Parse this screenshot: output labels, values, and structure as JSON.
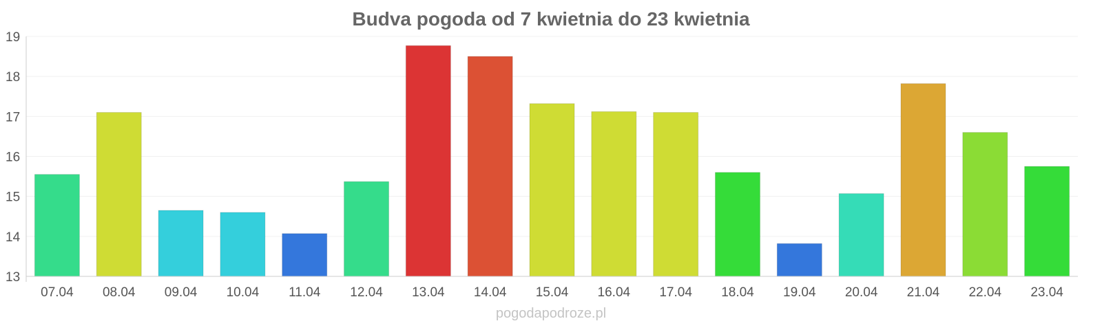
{
  "chart_data": {
    "type": "bar",
    "title": "Budva pogoda od 7 kwietnia do 23 kwietnia",
    "xlabel": "",
    "ylabel": "",
    "ylim": [
      13,
      19
    ],
    "yticks": [
      "13",
      "14",
      "15",
      "16",
      "17",
      "18",
      "19"
    ],
    "grid": true,
    "categories": [
      "07.04",
      "08.04",
      "09.04",
      "10.04",
      "11.04",
      "12.04",
      "13.04",
      "14.04",
      "15.04",
      "16.04",
      "17.04",
      "18.04",
      "19.04",
      "20.04",
      "21.04",
      "22.04",
      "23.04"
    ],
    "values": [
      15.55,
      17.1,
      14.65,
      14.6,
      14.07,
      15.37,
      18.77,
      18.5,
      17.32,
      17.12,
      17.1,
      15.6,
      13.82,
      15.07,
      17.82,
      16.6,
      15.75
    ],
    "colors": [
      "#35dc8b",
      "#cfdc34",
      "#34cfdc",
      "#34cfdc",
      "#3477dc",
      "#35dc8b",
      "#dc3434",
      "#dc5134",
      "#cfdc34",
      "#cfdc34",
      "#cfdc34",
      "#35dc39",
      "#3477dc",
      "#35dcb7",
      "#dca734",
      "#8bdc35",
      "#35dc39"
    ]
  },
  "watermark": "pogodapodroze.pl"
}
